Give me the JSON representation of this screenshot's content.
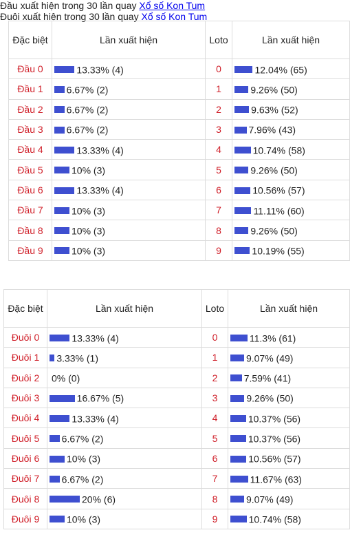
{
  "tables": [
    {
      "title": "Đầu xuất hiện trong 30 lần quay",
      "title_link": "Xổ số Kon Tum",
      "headers": [
        "Đặc biệt",
        "Lần xuất hiện",
        "Loto",
        "Lần xuất hiện"
      ],
      "rows": [
        {
          "label": "Đầu 0",
          "value": 13.33,
          "value_label": "13.33% (4)",
          "loto": "0",
          "loto_value": 12.04,
          "loto_label": "12.04% (65)"
        },
        {
          "label": "Đầu 1",
          "value": 6.67,
          "value_label": "6.67% (2)",
          "loto": "1",
          "loto_value": 9.26,
          "loto_label": "9.26% (50)"
        },
        {
          "label": "Đầu 2",
          "value": 6.67,
          "value_label": "6.67% (2)",
          "loto": "2",
          "loto_value": 9.63,
          "loto_label": "9.63% (52)"
        },
        {
          "label": "Đầu 3",
          "value": 6.67,
          "value_label": "6.67% (2)",
          "loto": "3",
          "loto_value": 7.96,
          "loto_label": "7.96% (43)"
        },
        {
          "label": "Đầu 4",
          "value": 13.33,
          "value_label": "13.33% (4)",
          "loto": "4",
          "loto_value": 10.74,
          "loto_label": "10.74% (58)"
        },
        {
          "label": "Đầu 5",
          "value": 10,
          "value_label": "10% (3)",
          "loto": "5",
          "loto_value": 9.26,
          "loto_label": "9.26% (50)"
        },
        {
          "label": "Đầu 6",
          "value": 13.33,
          "value_label": "13.33% (4)",
          "loto": "6",
          "loto_value": 10.56,
          "loto_label": "10.56% (57)"
        },
        {
          "label": "Đầu 7",
          "value": 10,
          "value_label": "10% (3)",
          "loto": "7",
          "loto_value": 11.11,
          "loto_label": "11.11% (60)"
        },
        {
          "label": "Đầu 8",
          "value": 10,
          "value_label": "10% (3)",
          "loto": "8",
          "loto_value": 9.26,
          "loto_label": "9.26% (50)"
        },
        {
          "label": "Đầu 9",
          "value": 10,
          "value_label": "10% (3)",
          "loto": "9",
          "loto_value": 10.19,
          "loto_label": "10.19% (55)"
        }
      ]
    },
    {
      "title": "Đuôi xuất hiện trong 30 lần quay",
      "title_link": "Xổ số Kon Tum",
      "headers": [
        "Đặc biệt",
        "Lần xuất hiện",
        "Loto",
        "Lần xuất hiện"
      ],
      "rows": [
        {
          "label": "Đuôi 0",
          "value": 13.33,
          "value_label": "13.33% (4)",
          "loto": "0",
          "loto_value": 11.3,
          "loto_label": "11.3% (61)"
        },
        {
          "label": "Đuôi 1",
          "value": 3.33,
          "value_label": "3.33% (1)",
          "loto": "1",
          "loto_value": 9.07,
          "loto_label": "9.07% (49)"
        },
        {
          "label": "Đuôi 2",
          "value": 0,
          "value_label": "0% (0)",
          "loto": "2",
          "loto_value": 7.59,
          "loto_label": "7.59% (41)"
        },
        {
          "label": "Đuôi 3",
          "value": 16.67,
          "value_label": "16.67% (5)",
          "loto": "3",
          "loto_value": 9.26,
          "loto_label": "9.26% (50)"
        },
        {
          "label": "Đuôi 4",
          "value": 13.33,
          "value_label": "13.33% (4)",
          "loto": "4",
          "loto_value": 10.37,
          "loto_label": "10.37% (56)"
        },
        {
          "label": "Đuôi 5",
          "value": 6.67,
          "value_label": "6.67% (2)",
          "loto": "5",
          "loto_value": 10.37,
          "loto_label": "10.37% (56)"
        },
        {
          "label": "Đuôi 6",
          "value": 10,
          "value_label": "10% (3)",
          "loto": "6",
          "loto_value": 10.56,
          "loto_label": "10.56% (57)"
        },
        {
          "label": "Đuôi 7",
          "value": 6.67,
          "value_label": "6.67% (2)",
          "loto": "7",
          "loto_value": 11.67,
          "loto_label": "11.67% (63)"
        },
        {
          "label": "Đuôi 8",
          "value": 20,
          "value_label": "20% (6)",
          "loto": "8",
          "loto_value": 9.07,
          "loto_label": "9.07% (49)"
        },
        {
          "label": "Đuôi 9",
          "value": 10,
          "value_label": "10% (3)",
          "loto": "9",
          "loto_value": 10.74,
          "loto_label": "10.74% (58)"
        }
      ]
    }
  ]
}
